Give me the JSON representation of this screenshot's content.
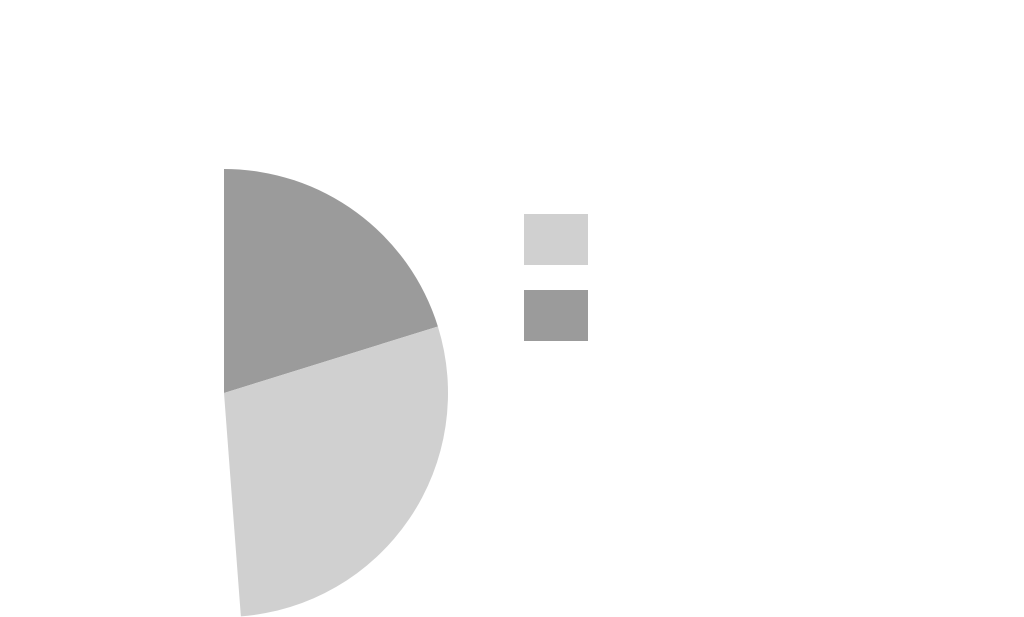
{
  "chart_data": {
    "type": "pie",
    "title": "",
    "slices": [
      {
        "label": "",
        "value": 20.2,
        "color": "#9b9b9b"
      },
      {
        "label": "",
        "value": 28.6,
        "color": "#d0d0d0"
      }
    ],
    "legend": {
      "placement": "right",
      "entries": [
        {
          "label": "",
          "color": "#d0d0d0"
        },
        {
          "label": "",
          "color": "#9b9b9b"
        }
      ]
    }
  }
}
